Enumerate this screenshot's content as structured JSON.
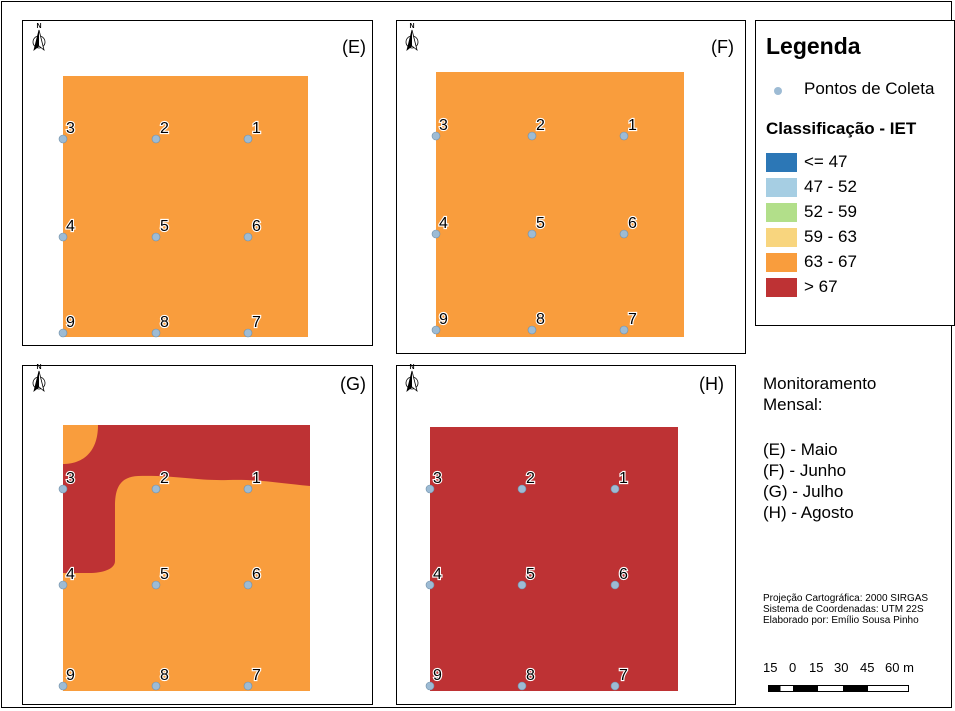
{
  "panels": [
    {
      "label": "(E)",
      "zone": "63 - 67"
    },
    {
      "label": "(F)",
      "zone": "63 - 67"
    },
    {
      "label": "(G)",
      "zone": "mixed 63 - 67 / > 67"
    },
    {
      "label": "(H)",
      "zone": "> 67"
    }
  ],
  "points": [
    "1",
    "2",
    "3",
    "4",
    "5",
    "6",
    "7",
    "8",
    "9"
  ],
  "north_arrow": {
    "letter": "N",
    "icon": "north-arrow-icon"
  },
  "legend": {
    "title": "Legenda",
    "point_label": "Pontos de Coleta",
    "point_color": "#9dbbd4",
    "class_title": "Classificação - IET",
    "classes": [
      {
        "label": "<= 47",
        "color": "#2c77b6"
      },
      {
        "label": "47 - 52",
        "color": "#a6cee3"
      },
      {
        "label": "52 - 59",
        "color": "#b2df8a"
      },
      {
        "label": "59 - 63",
        "color": "#f8d57e"
      },
      {
        "label": "63 - 67",
        "color": "#f99d3d"
      },
      {
        "label": "> 67",
        "color": "#be3234"
      }
    ]
  },
  "monitoring": {
    "title_line1": "Monitoramento",
    "title_line2": "Mensal:",
    "months": [
      "(E) - Maio",
      "(F) - Junho",
      "(G) - Julho",
      "(H) - Agosto"
    ]
  },
  "credits": {
    "projection": "Projeção Cartográfica: 2000 SIRGAS",
    "coords": "Sistema de Coordenadas: UTM 22S",
    "author": "Elaborado por: Emílio Sousa Pinho"
  },
  "scale": {
    "ticks": [
      "15",
      "0",
      "15",
      "30",
      "45",
      "60 m"
    ]
  }
}
